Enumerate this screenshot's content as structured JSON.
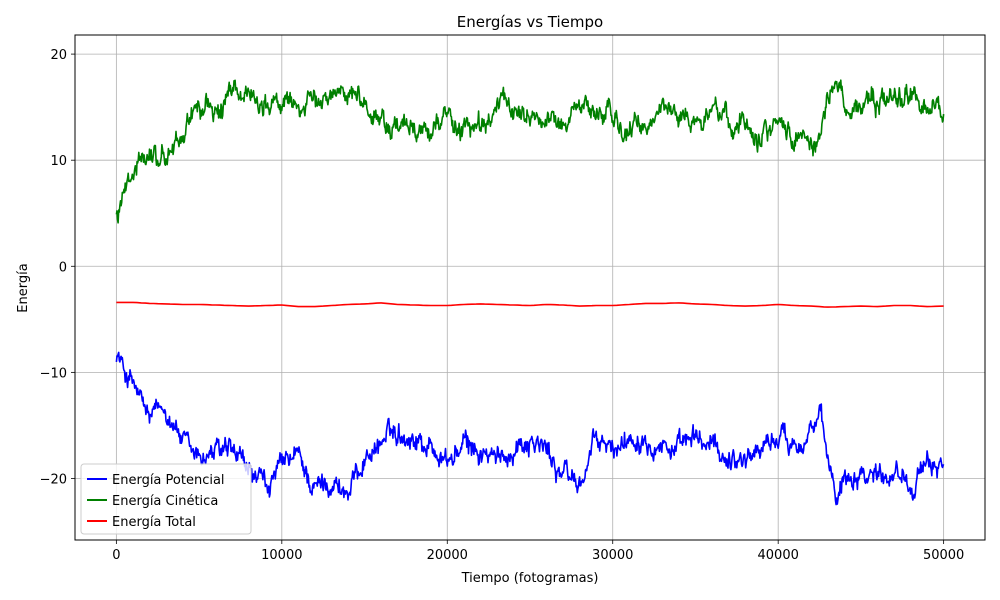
{
  "chart_data": {
    "type": "line",
    "title": "Energías vs Tiempo",
    "xlabel": "Tiempo (fotogramas)",
    "ylabel": "Energía",
    "xlim": [
      -2500,
      52500
    ],
    "ylim": [
      -25.8,
      21.8
    ],
    "xticks": [
      0,
      10000,
      20000,
      30000,
      40000,
      50000
    ],
    "xtick_labels": [
      "0",
      "10000",
      "20000",
      "30000",
      "40000",
      "50000"
    ],
    "yticks": [
      -20,
      -10,
      0,
      10,
      20
    ],
    "ytick_labels": [
      "−20",
      "−10",
      "0",
      "10",
      "20"
    ],
    "grid": true,
    "legend_position": "lower-left",
    "series": [
      {
        "name": "Energía Potencial",
        "color": "#0000ff",
        "noise": 1.0,
        "x": [
          0,
          500,
          1000,
          1500,
          2000,
          2500,
          3000,
          3500,
          4000,
          4500,
          5000,
          6000,
          7000,
          8000,
          9000,
          10000,
          11000,
          12000,
          13000,
          14000,
          15000,
          16000,
          17000,
          18000,
          19000,
          20000,
          21000,
          22000,
          23000,
          24000,
          25000,
          26000,
          27000,
          28000,
          29000,
          30000,
          31000,
          32000,
          33000,
          34000,
          35000,
          36000,
          37000,
          38000,
          39000,
          40000,
          41000,
          42000,
          42500,
          43000,
          43500,
          44000,
          45000,
          46000,
          47000,
          48000,
          49000,
          50000
        ],
        "y": [
          -8.0,
          -10.0,
          -11.0,
          -13.0,
          -14.5,
          -14.0,
          -13.5,
          -14.5,
          -16.5,
          -18.0,
          -18.0,
          -17.5,
          -18.0,
          -19.5,
          -21.0,
          -19.0,
          -18.0,
          -21.0,
          -20.0,
          -21.5,
          -18.0,
          -16.5,
          -15.5,
          -16.0,
          -17.0,
          -18.5,
          -17.0,
          -17.5,
          -18.5,
          -17.0,
          -16.0,
          -17.5,
          -19.5,
          -20.5,
          -16.5,
          -17.5,
          -16.0,
          -15.5,
          -16.5,
          -17.5,
          -16.5,
          -17.0,
          -18.0,
          -18.0,
          -17.0,
          -16.0,
          -16.5,
          -15.0,
          -14.5,
          -18.5,
          -21.5,
          -19.5,
          -19.0,
          -19.5,
          -19.0,
          -20.0,
          -19.5,
          -18.0
        ]
      },
      {
        "name": "Energía Cinética",
        "color": "#008000",
        "noise": 1.0,
        "x": [
          0,
          500,
          1000,
          1500,
          2000,
          2500,
          3000,
          3500,
          4000,
          4500,
          5000,
          6000,
          7000,
          8000,
          9000,
          10000,
          11000,
          12000,
          13000,
          14000,
          15000,
          16000,
          17000,
          18000,
          19000,
          20000,
          21000,
          22000,
          23000,
          24000,
          25000,
          26000,
          27000,
          28000,
          29000,
          30000,
          31000,
          32000,
          33000,
          34000,
          35000,
          36000,
          37000,
          38000,
          39000,
          40000,
          41000,
          42000,
          42500,
          43000,
          43500,
          44000,
          45000,
          46000,
          47000,
          48000,
          49000,
          50000
        ],
        "y": [
          4.6,
          6.5,
          7.5,
          10.0,
          10.5,
          10.5,
          10.0,
          11.5,
          12.0,
          14.5,
          15.0,
          14.5,
          16.0,
          16.5,
          15.5,
          15.0,
          15.5,
          15.0,
          16.0,
          17.5,
          15.0,
          14.0,
          13.0,
          12.5,
          13.5,
          14.0,
          13.0,
          13.0,
          15.0,
          15.0,
          14.5,
          13.5,
          13.5,
          15.5,
          14.5,
          14.0,
          12.5,
          13.0,
          15.0,
          14.5,
          13.5,
          14.5,
          14.0,
          13.5,
          13.0,
          13.5,
          12.5,
          12.0,
          11.5,
          16.0,
          17.5,
          15.5,
          15.0,
          15.0,
          16.0,
          16.5,
          15.0,
          14.5
        ]
      },
      {
        "name": "Energía Total",
        "color": "#ff0000",
        "noise": 0.0,
        "x": [
          0,
          1000,
          2000,
          3000,
          4000,
          5000,
          6000,
          7000,
          8000,
          9000,
          10000,
          11000,
          12000,
          13000,
          14000,
          15000,
          16000,
          17000,
          18000,
          19000,
          20000,
          21000,
          22000,
          23000,
          24000,
          25000,
          26000,
          27000,
          28000,
          29000,
          30000,
          31000,
          32000,
          33000,
          34000,
          35000,
          36000,
          37000,
          38000,
          39000,
          40000,
          41000,
          42000,
          43000,
          44000,
          45000,
          46000,
          47000,
          48000,
          49000,
          50000
        ],
        "y": [
          -3.4,
          -3.4,
          -3.5,
          -3.55,
          -3.6,
          -3.6,
          -3.65,
          -3.7,
          -3.75,
          -3.7,
          -3.65,
          -3.8,
          -3.8,
          -3.7,
          -3.6,
          -3.55,
          -3.45,
          -3.6,
          -3.65,
          -3.7,
          -3.7,
          -3.6,
          -3.55,
          -3.6,
          -3.65,
          -3.7,
          -3.6,
          -3.65,
          -3.75,
          -3.7,
          -3.7,
          -3.6,
          -3.5,
          -3.5,
          -3.45,
          -3.55,
          -3.6,
          -3.7,
          -3.75,
          -3.7,
          -3.6,
          -3.7,
          -3.75,
          -3.85,
          -3.8,
          -3.75,
          -3.8,
          -3.7,
          -3.7,
          -3.8,
          -3.75
        ]
      }
    ]
  }
}
